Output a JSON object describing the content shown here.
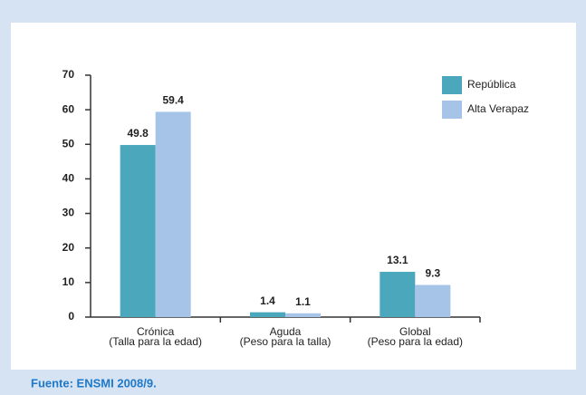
{
  "chart_data": {
    "type": "bar",
    "categories": [
      [
        "Crónica",
        "(Talla para la edad)"
      ],
      [
        "Aguda",
        "(Peso para la talla)"
      ],
      [
        "Global",
        "(Peso para la edad)"
      ]
    ],
    "series": [
      {
        "name": "República",
        "color": "#4ba7bb",
        "values": [
          49.8,
          1.4,
          13.1
        ]
      },
      {
        "name": "Alta Verapaz",
        "color": "#a6c4e8",
        "values": [
          59.4,
          1.1,
          9.3
        ]
      }
    ],
    "ylim": [
      0,
      70
    ],
    "yticks": [
      0,
      10,
      20,
      30,
      40,
      50,
      60,
      70
    ],
    "legend": "top-right"
  },
  "source": "Fuente: ENSMI 2008/9."
}
